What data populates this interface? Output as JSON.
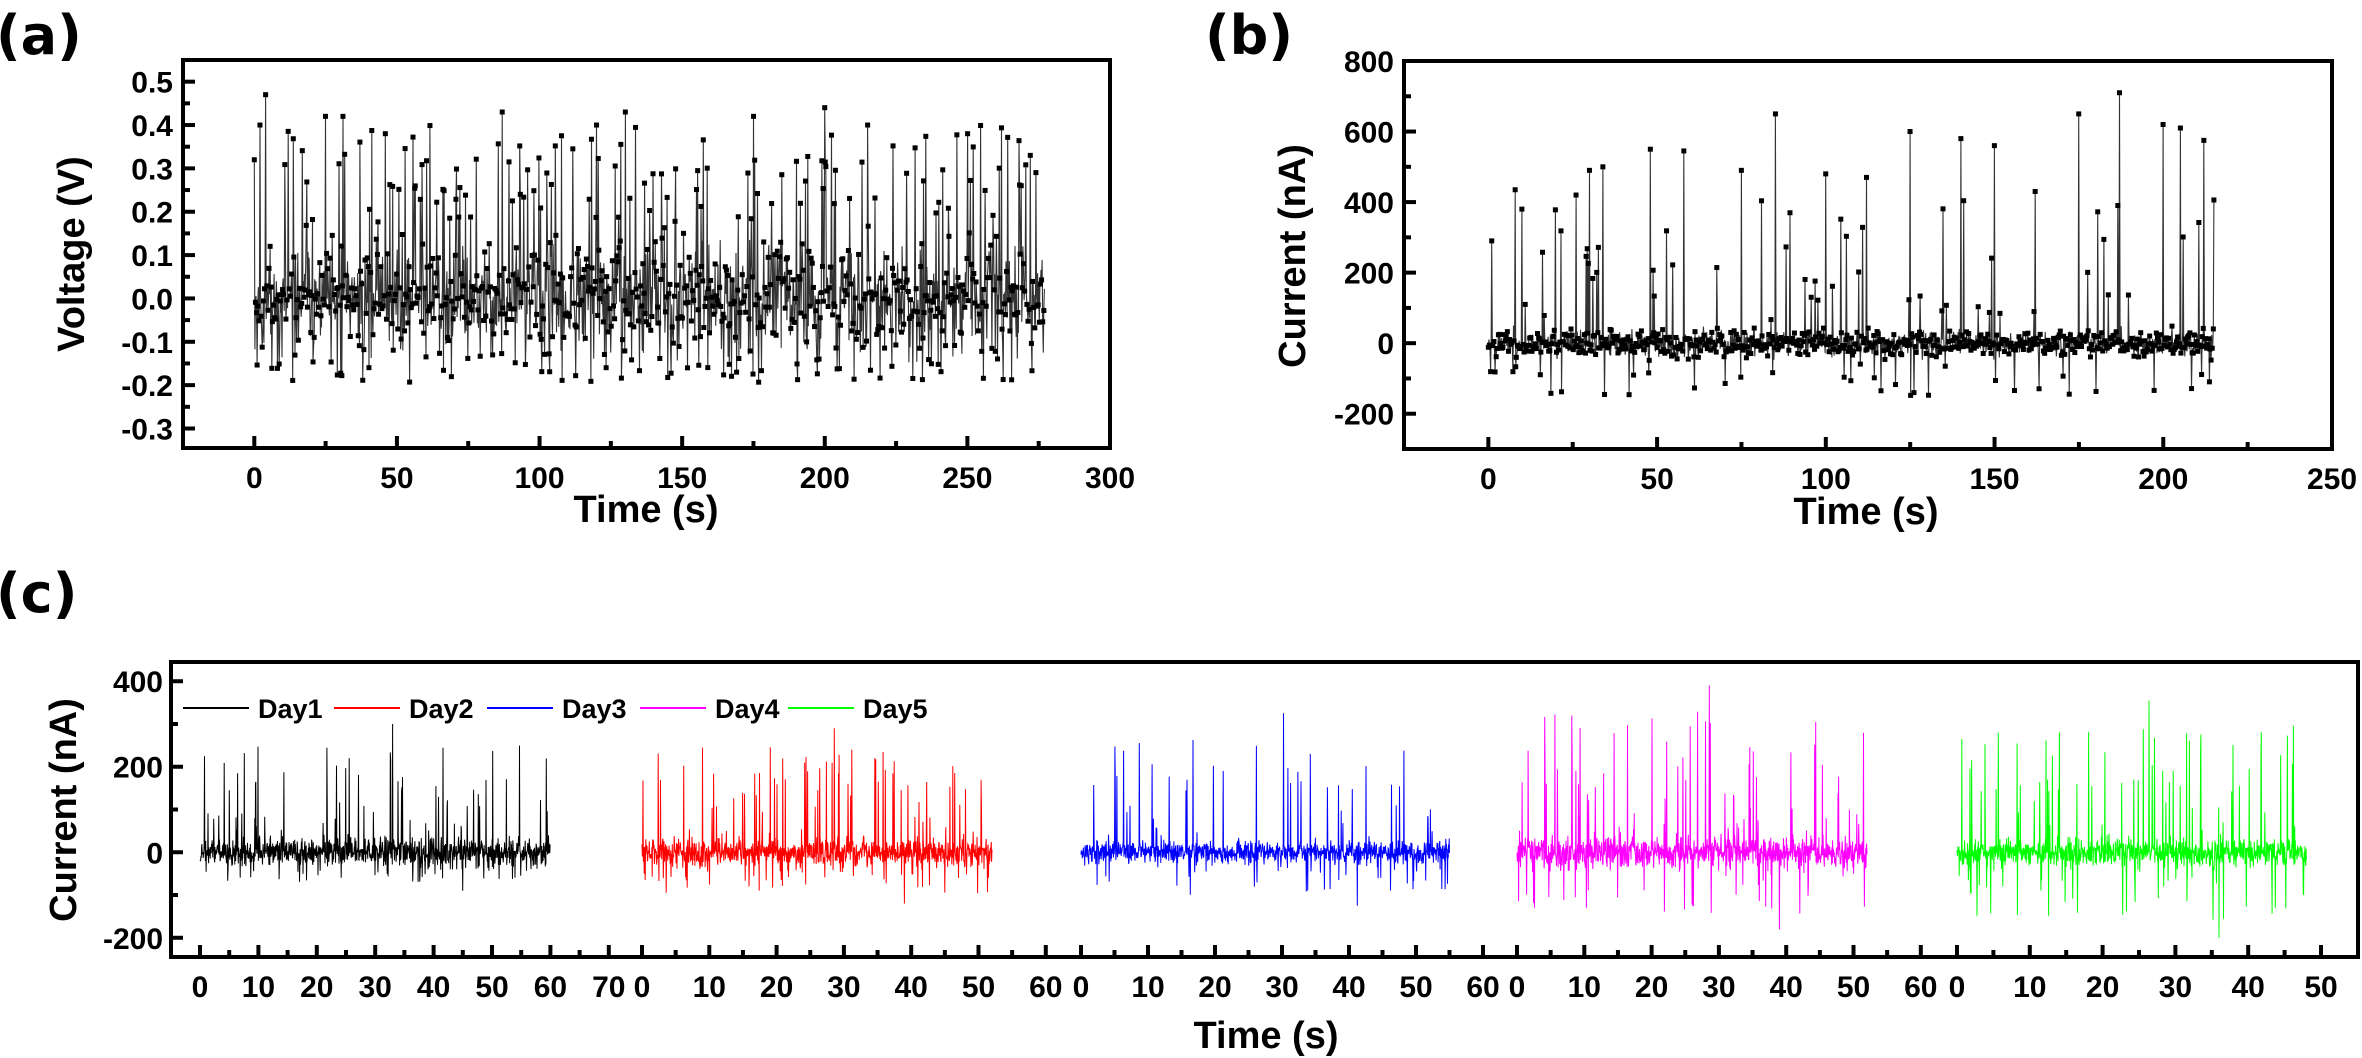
{
  "figure": {
    "panels": [
      {
        "id": "a",
        "label": "(a)"
      },
      {
        "id": "b",
        "label": "(b)"
      },
      {
        "id": "c",
        "label": "(c)"
      }
    ]
  },
  "chart_data": [
    {
      "panel": "(a)",
      "type": "line",
      "marker": "square",
      "title": "",
      "xlabel": "Time (s)",
      "ylabel": "Voltage (V)",
      "xlim": [
        -25,
        300
      ],
      "ylim": [
        -0.345,
        0.55
      ],
      "xticks": [
        0,
        50,
        100,
        150,
        200,
        250,
        300
      ],
      "xtick_labels": [
        "0",
        "50",
        "100",
        "150",
        "200",
        "250",
        "300"
      ],
      "yticks": [
        -0.3,
        -0.2,
        -0.1,
        0.0,
        0.1,
        0.2,
        0.3,
        0.4,
        0.5
      ],
      "ytick_labels": [
        "-0.3",
        "-0.2",
        "-0.1",
        "0.0",
        "0.1",
        "0.2",
        "0.3",
        "0.4",
        "0.5"
      ],
      "grid": false,
      "series": [
        {
          "name": "Voltage",
          "color": "#000000",
          "x_range": [
            0,
            277
          ],
          "baseline": 0.0,
          "noise_amplitude": 0.12,
          "max_peak": 0.47,
          "min_trough": -0.245,
          "typical_peak_range": [
            0.25,
            0.44
          ],
          "sample_peaks": [
            [
              2,
              0.4
            ],
            [
              4,
              0.47
            ],
            [
              25,
              0.42
            ],
            [
              31,
              0.42
            ],
            [
              46,
              0.38
            ],
            [
              87,
              0.43
            ],
            [
              120,
              0.4
            ],
            [
              130,
              0.43
            ],
            [
              175,
              0.42
            ],
            [
              200,
              0.44
            ],
            [
              215,
              0.4
            ],
            [
              250,
              0.38
            ],
            [
              272,
              0.33
            ]
          ]
        }
      ]
    },
    {
      "panel": "(b)",
      "type": "line",
      "marker": "square",
      "title": "",
      "xlabel": "Time (s)",
      "ylabel": "Current (nA)",
      "xlim": [
        -25,
        250
      ],
      "ylim": [
        -300,
        800
      ],
      "xticks": [
        0,
        50,
        100,
        150,
        200,
        250
      ],
      "xtick_labels": [
        "0",
        "50",
        "100",
        "150",
        "200",
        "250"
      ],
      "yticks": [
        -200,
        0,
        200,
        400,
        600,
        800
      ],
      "ytick_labels": [
        "-200",
        "0",
        "200",
        "400",
        "600",
        "800"
      ],
      "grid": false,
      "series": [
        {
          "name": "Current",
          "color": "#000000",
          "x_range": [
            0,
            215
          ],
          "baseline": 0,
          "noise_amplitude": 40,
          "max_peak": 710,
          "min_trough": -185,
          "sample_peaks": [
            [
              1,
              290
            ],
            [
              8,
              435
            ],
            [
              10,
              380
            ],
            [
              26,
              420
            ],
            [
              30,
              490
            ],
            [
              34,
              500
            ],
            [
              48,
              550
            ],
            [
              58,
              545
            ],
            [
              75,
              490
            ],
            [
              85,
              650
            ],
            [
              100,
              480
            ],
            [
              112,
              470
            ],
            [
              125,
              600
            ],
            [
              140,
              580
            ],
            [
              150,
              560
            ],
            [
              162,
              430
            ],
            [
              175,
              650
            ],
            [
              187,
              710
            ],
            [
              200,
              620
            ],
            [
              205,
              610
            ],
            [
              212,
              575
            ]
          ]
        }
      ]
    },
    {
      "panel": "(c)",
      "type": "line",
      "title": "",
      "xlabel": "Time (s)",
      "ylabel": "Current (nA)",
      "ylim": [
        -245,
        445
      ],
      "yticks": [
        -200,
        0,
        200,
        400
      ],
      "ytick_labels": [
        "-200",
        "0",
        "200",
        "400"
      ],
      "grid": false,
      "legend": {
        "position": "top-left",
        "orientation": "horizontal"
      },
      "segments": [
        {
          "name": "Day1",
          "color": "#000000",
          "xlim": [
            0,
            70
          ],
          "xticks": [
            0,
            10,
            20,
            30,
            40,
            50,
            60,
            70
          ],
          "x_range": [
            0,
            60
          ],
          "noise_amplitude": 35,
          "max_peak": 300,
          "min_trough": -90
        },
        {
          "name": "Day2",
          "color": "#ff0000",
          "xlim": [
            0,
            60
          ],
          "xticks": [
            0,
            10,
            20,
            30,
            40,
            50,
            60
          ],
          "x_range": [
            0,
            52
          ],
          "noise_amplitude": 35,
          "max_peak": 290,
          "min_trough": -120
        },
        {
          "name": "Day3",
          "color": "#0000ff",
          "xlim": [
            0,
            60
          ],
          "xticks": [
            0,
            10,
            20,
            30,
            40,
            50,
            60
          ],
          "x_range": [
            0,
            55
          ],
          "noise_amplitude": 30,
          "max_peak": 325,
          "min_trough": -125
        },
        {
          "name": "Day4",
          "color": "#ff00ff",
          "xlim": [
            0,
            60
          ],
          "xticks": [
            0,
            10,
            20,
            30,
            40,
            50,
            60
          ],
          "x_range": [
            0,
            52
          ],
          "noise_amplitude": 40,
          "max_peak": 390,
          "min_trough": -180
        },
        {
          "name": "Day5",
          "color": "#00ff00",
          "xlim": [
            0,
            50
          ],
          "xticks": [
            0,
            10,
            20,
            30,
            40,
            50
          ],
          "x_range": [
            0,
            48
          ],
          "noise_amplitude": 35,
          "max_peak": 355,
          "min_trough": -200
        }
      ]
    }
  ]
}
